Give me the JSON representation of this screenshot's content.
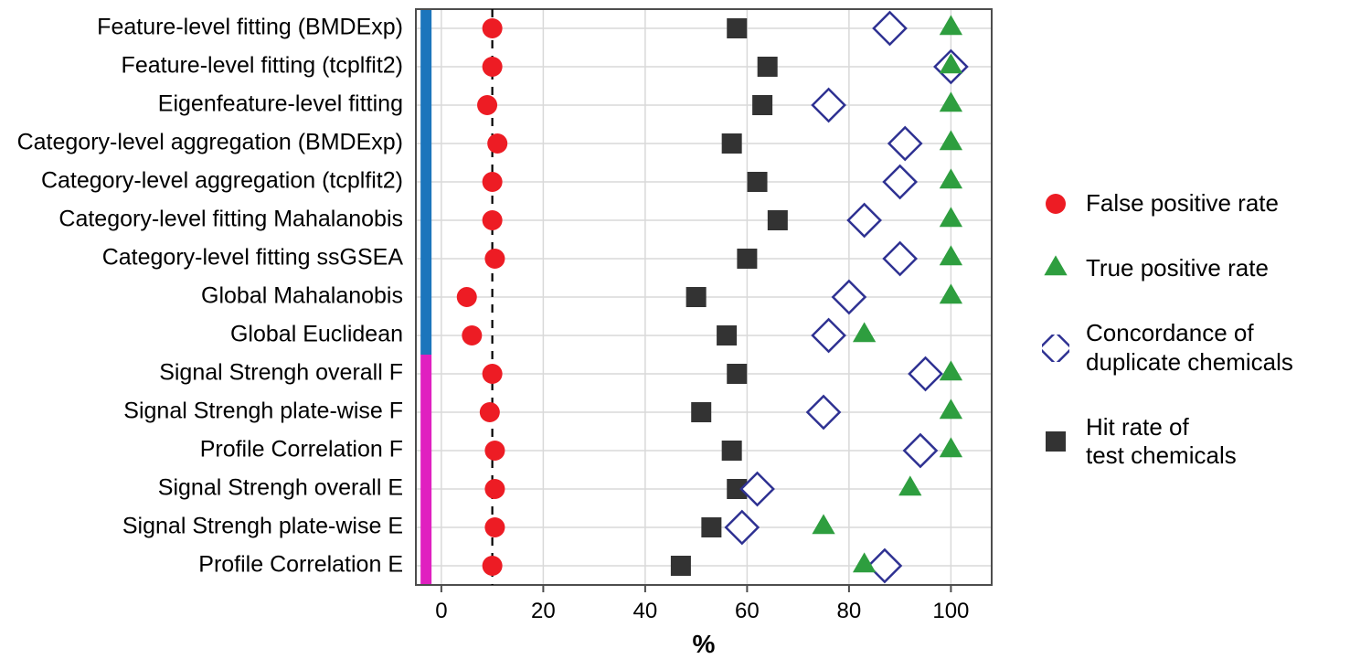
{
  "chart": {
    "type": "dotplot",
    "xlabel": "%",
    "label_fontsize": 28,
    "tick_fontsize": 24,
    "ytick_fontsize": 25,
    "xlim": [
      -5,
      108
    ],
    "xticks": [
      0,
      20,
      40,
      60,
      80,
      100
    ],
    "dashed_x": 10,
    "background_color": "#ffffff",
    "panel_background": "#ffffff",
    "grid_color": "#d9d9d9",
    "panel_border_color": "#4d4d4d",
    "dash_color": "#000000",
    "marker_size": 22,
    "stroke_width": 2.5,
    "colors": {
      "false_positive": "#ed1c24",
      "true_positive": "#2e9e3f",
      "concordance_stroke": "#2e3192",
      "concordance_fill": "#ffffff",
      "hit_rate": "#333333",
      "group_bar_top": "#1c75bc",
      "group_bar_bottom": "#e020c0"
    },
    "group_bar_width": 12,
    "rows": [
      {
        "label": "Feature-level fitting (BMDExp)",
        "group": 0,
        "false_positive": 10,
        "hit_rate": 58,
        "concordance": 88,
        "true_positive": 100
      },
      {
        "label": "Feature-level fitting (tcplfit2)",
        "group": 0,
        "false_positive": 10,
        "hit_rate": 64,
        "concordance": 100,
        "true_positive": 100
      },
      {
        "label": "Eigenfeature-level fitting",
        "group": 0,
        "false_positive": 9,
        "hit_rate": 63,
        "concordance": 76,
        "true_positive": 100
      },
      {
        "label": "Category-level aggregation (BMDExp)",
        "group": 0,
        "false_positive": 11,
        "hit_rate": 57,
        "concordance": 91,
        "true_positive": 100
      },
      {
        "label": "Category-level aggregation (tcplfit2)",
        "group": 0,
        "false_positive": 10,
        "hit_rate": 62,
        "concordance": 90,
        "true_positive": 100
      },
      {
        "label": "Category-level fitting Mahalanobis",
        "group": 0,
        "false_positive": 10,
        "hit_rate": 66,
        "concordance": 83,
        "true_positive": 100
      },
      {
        "label": "Category-level fitting ssGSEA",
        "group": 0,
        "false_positive": 10.5,
        "hit_rate": 60,
        "concordance": 90,
        "true_positive": 100
      },
      {
        "label": "Global Mahalanobis",
        "group": 0,
        "false_positive": 5,
        "hit_rate": 50,
        "concordance": 80,
        "true_positive": 100
      },
      {
        "label": "Global Euclidean",
        "group": 0,
        "false_positive": 6,
        "hit_rate": 56,
        "concordance": 76,
        "true_positive": 83
      },
      {
        "label": "Signal Strengh overall F",
        "group": 1,
        "false_positive": 10,
        "hit_rate": 58,
        "concordance": 95,
        "true_positive": 100
      },
      {
        "label": "Signal Strengh plate-wise F",
        "group": 1,
        "false_positive": 9.5,
        "hit_rate": 51,
        "concordance": 75,
        "true_positive": 100
      },
      {
        "label": "Profile Correlation F",
        "group": 1,
        "false_positive": 10.5,
        "hit_rate": 57,
        "concordance": 94,
        "true_positive": 100
      },
      {
        "label": "Signal Strengh overall E",
        "group": 1,
        "false_positive": 10.5,
        "hit_rate": 58,
        "concordance": 62,
        "true_positive": 92
      },
      {
        "label": "Signal Strengh plate-wise E",
        "group": 1,
        "false_positive": 10.5,
        "hit_rate": 53,
        "concordance": 59,
        "true_positive": 75
      },
      {
        "label": "Profile Correlation E",
        "group": 1,
        "false_positive": 10,
        "hit_rate": 47,
        "concordance": 87,
        "true_positive": 83
      }
    ]
  },
  "legend": {
    "entries": [
      {
        "key": "false_positive",
        "label": "False positive rate"
      },
      {
        "key": "true_positive",
        "label": "True positive rate"
      },
      {
        "key": "concordance",
        "label": "Concordance of\nduplicate chemicals"
      },
      {
        "key": "hit_rate",
        "label": "Hit rate of\ntest chemicals"
      }
    ]
  }
}
